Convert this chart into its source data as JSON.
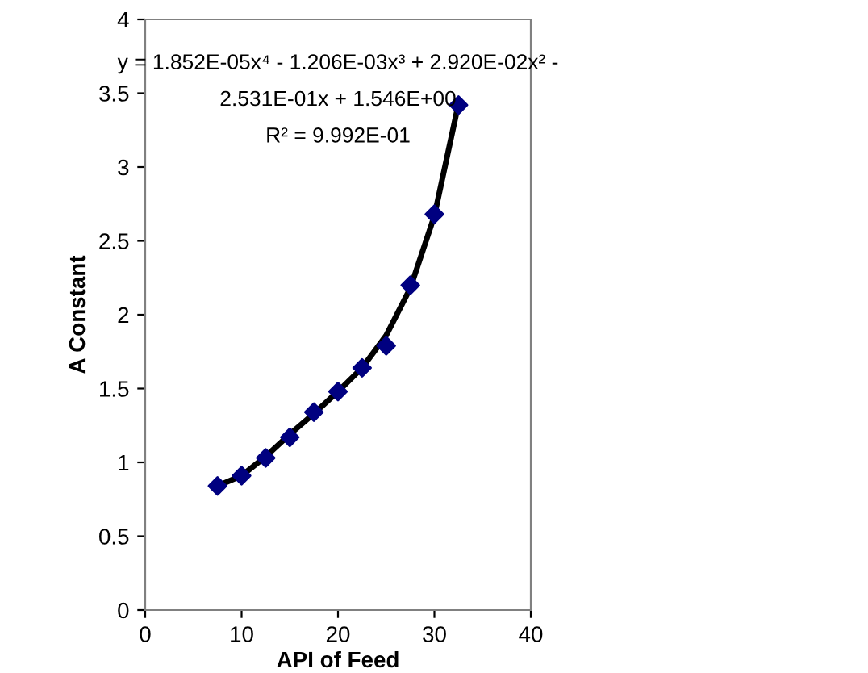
{
  "chart_data": {
    "type": "scatter",
    "xlabel": "API of Feed",
    "ylabel": "A Constant",
    "series": [
      {
        "color": "#000080",
        "marker": "diamond",
        "x": [
          7.5,
          10,
          12.5,
          15,
          17.5,
          20,
          22.5,
          25,
          27.5,
          30,
          32.5
        ],
        "values": [
          0.84,
          0.91,
          1.03,
          1.17,
          1.34,
          1.48,
          1.64,
          1.79,
          2.2,
          2.68,
          3.42
        ]
      },
      {
        "type": "line",
        "color": "#000000",
        "marker": "none",
        "line_style": "solid",
        "x": [
          7.5,
          10,
          12.5,
          15,
          17.5,
          20,
          22.5,
          25,
          27.5,
          30,
          32.5
        ],
        "values": [
          0.84,
          0.91,
          1.04,
          1.19,
          1.33,
          1.48,
          1.64,
          1.86,
          2.18,
          2.67,
          3.43
        ]
      }
    ],
    "xlim": [
      0,
      40
    ],
    "xticks": [
      0,
      10,
      20,
      30,
      40
    ],
    "ylim": [
      0,
      4
    ],
    "yticks": [
      0,
      0.5,
      1,
      1.5,
      2,
      2.5,
      3,
      3.5,
      4
    ],
    "grid": false,
    "legend": false,
    "annotations": [
      "y = 1.852E-05x⁴ - 1.206E-03x³ + 2.920E-02x² -",
      "2.531E-01x + 1.546E+00",
      "R² = 9.992E-01"
    ]
  }
}
